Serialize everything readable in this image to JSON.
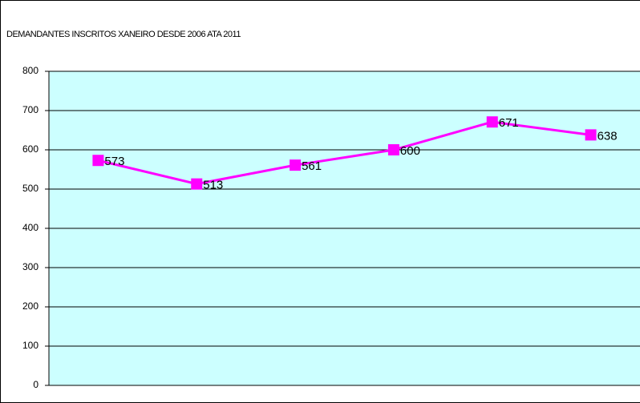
{
  "chart_data": {
    "type": "line",
    "title": "DEMANDANTES INSCRITOS XANEIRO DESDE 2006 ATA 2011",
    "categories": [
      null,
      null,
      null,
      null,
      null,
      null
    ],
    "series": [
      {
        "name": null,
        "color": "#ff00ff",
        "values": [
          573,
          513,
          561,
          600,
          671,
          638
        ]
      }
    ],
    "ylim": [
      0,
      800
    ],
    "yticks": [
      0,
      100,
      200,
      300,
      400,
      500,
      600,
      700,
      800
    ],
    "grid": true,
    "plot_background": "#ccffff",
    "data_labels": true
  }
}
